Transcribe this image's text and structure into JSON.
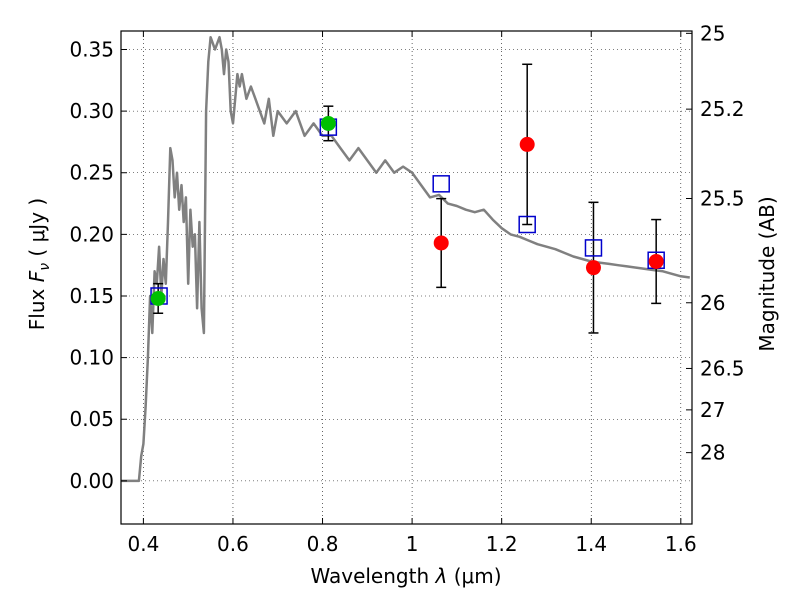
{
  "chart_data": {
    "type": "scatter",
    "xlabel_text": "Wavelength",
    "xlabel_symbol": "λ",
    "xlabel_unit": "(μm)",
    "ylabel_text": "Flux",
    "ylabel_symbol": "F",
    "ylabel_sub": "ν",
    "ylabel_unit": "( μJy )",
    "y2label": "Magnitude (AB)",
    "xlim": [
      0.35,
      1.625
    ],
    "ylim": [
      -0.035,
      0.365
    ],
    "grid": true,
    "x_ticks": [
      {
        "value": 0.4,
        "label": "0.4"
      },
      {
        "value": 0.6,
        "label": "0.6"
      },
      {
        "value": 0.8,
        "label": "0.8"
      },
      {
        "value": 1.0,
        "label": "1"
      },
      {
        "value": 1.2,
        "label": "1.2"
      },
      {
        "value": 1.4,
        "label": "1.4"
      },
      {
        "value": 1.6,
        "label": "1.6"
      }
    ],
    "y_ticks": [
      {
        "value": 0.0,
        "label": "0.00"
      },
      {
        "value": 0.05,
        "label": "0.05"
      },
      {
        "value": 0.1,
        "label": "0.10"
      },
      {
        "value": 0.15,
        "label": "0.15"
      },
      {
        "value": 0.2,
        "label": "0.20"
      },
      {
        "value": 0.25,
        "label": "0.25"
      },
      {
        "value": 0.3,
        "label": "0.30"
      },
      {
        "value": 0.35,
        "label": "0.35"
      }
    ],
    "mag_ticks": [
      {
        "flux": 0.3631,
        "label": "25"
      },
      {
        "flux": 0.3016,
        "label": "25.2"
      },
      {
        "flux": 0.2291,
        "label": "25.5"
      },
      {
        "flux": 0.1445,
        "label": "26"
      },
      {
        "flux": 0.0912,
        "label": "26.5"
      },
      {
        "flux": 0.0576,
        "label": "27"
      },
      {
        "flux": 0.0229,
        "label": "28"
      }
    ],
    "series": [
      {
        "kind": "line",
        "color": "#808080",
        "x": [
          0.35,
          0.39,
          0.395,
          0.4,
          0.405,
          0.41,
          0.415,
          0.42,
          0.425,
          0.43,
          0.435,
          0.44,
          0.445,
          0.45,
          0.455,
          0.46,
          0.465,
          0.47,
          0.475,
          0.48,
          0.485,
          0.49,
          0.495,
          0.5,
          0.505,
          0.51,
          0.515,
          0.52,
          0.525,
          0.53,
          0.535,
          0.54,
          0.545,
          0.55,
          0.56,
          0.57,
          0.575,
          0.58,
          0.585,
          0.59,
          0.595,
          0.6,
          0.605,
          0.61,
          0.615,
          0.62,
          0.63,
          0.64,
          0.65,
          0.66,
          0.67,
          0.68,
          0.69,
          0.7,
          0.72,
          0.74,
          0.76,
          0.78,
          0.8,
          0.82,
          0.84,
          0.86,
          0.88,
          0.9,
          0.92,
          0.94,
          0.96,
          0.98,
          1.0,
          1.02,
          1.04,
          1.06,
          1.08,
          1.1,
          1.12,
          1.14,
          1.16,
          1.18,
          1.2,
          1.22,
          1.24,
          1.26,
          1.28,
          1.3,
          1.32,
          1.34,
          1.36,
          1.38,
          1.4,
          1.42,
          1.44,
          1.46,
          1.48,
          1.5,
          1.52,
          1.54,
          1.56,
          1.58,
          1.6,
          1.62
        ],
        "y": [
          0.0,
          0.0,
          0.02,
          0.03,
          0.06,
          0.1,
          0.15,
          0.12,
          0.17,
          0.16,
          0.19,
          0.15,
          0.18,
          0.16,
          0.21,
          0.27,
          0.26,
          0.23,
          0.25,
          0.22,
          0.24,
          0.21,
          0.23,
          0.16,
          0.22,
          0.19,
          0.2,
          0.14,
          0.21,
          0.14,
          0.12,
          0.3,
          0.34,
          0.36,
          0.35,
          0.36,
          0.35,
          0.33,
          0.35,
          0.34,
          0.3,
          0.29,
          0.31,
          0.33,
          0.32,
          0.33,
          0.31,
          0.32,
          0.31,
          0.3,
          0.29,
          0.31,
          0.28,
          0.3,
          0.29,
          0.3,
          0.28,
          0.29,
          0.28,
          0.28,
          0.27,
          0.26,
          0.27,
          0.26,
          0.25,
          0.26,
          0.25,
          0.255,
          0.25,
          0.24,
          0.23,
          0.232,
          0.225,
          0.223,
          0.22,
          0.218,
          0.22,
          0.212,
          0.205,
          0.2,
          0.198,
          0.195,
          0.192,
          0.19,
          0.188,
          0.185,
          0.182,
          0.18,
          0.178,
          0.177,
          0.176,
          0.175,
          0.174,
          0.173,
          0.172,
          0.171,
          0.17,
          0.168,
          0.166,
          0.165
        ]
      },
      {
        "kind": "points",
        "marker": "circle",
        "color": "#00c000",
        "x": [
          0.433,
          0.813
        ],
        "y": [
          0.148,
          0.29
        ],
        "err": [
          0.012,
          0.014
        ]
      },
      {
        "kind": "points",
        "marker": "circle",
        "color": "#ff0000",
        "x": [
          1.065,
          1.257,
          1.405,
          1.545
        ],
        "y": [
          0.193,
          0.273,
          0.173,
          0.178
        ],
        "err": [
          0.036,
          0.065,
          0.053,
          0.034
        ]
      },
      {
        "kind": "points",
        "marker": "square",
        "color": "#0000cc",
        "x": [
          0.435,
          0.813,
          1.065,
          1.257,
          1.405,
          1.545
        ],
        "y": [
          0.15,
          0.287,
          0.241,
          0.208,
          0.189,
          0.179
        ]
      }
    ]
  }
}
